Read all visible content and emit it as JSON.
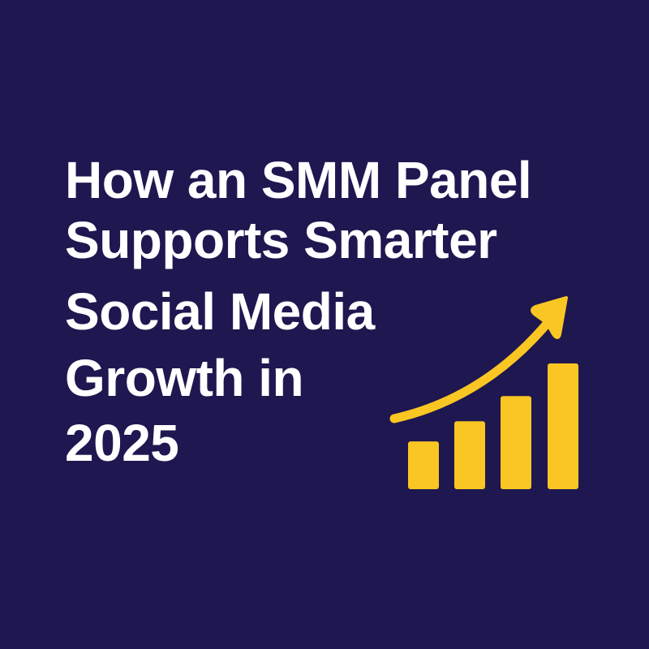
{
  "title": {
    "lines": [
      "How an SMM Panel",
      "Supports Smarter",
      "Social Media",
      "Growth in",
      "2025"
    ]
  },
  "graphic": {
    "icon": "growth-bar-chart-with-arrow",
    "bar_levels": [
      0.38,
      0.54,
      0.74,
      1.0
    ],
    "colors": {
      "background": "#1e1750",
      "accent": "#f9c623",
      "text": "#ffffff"
    }
  }
}
